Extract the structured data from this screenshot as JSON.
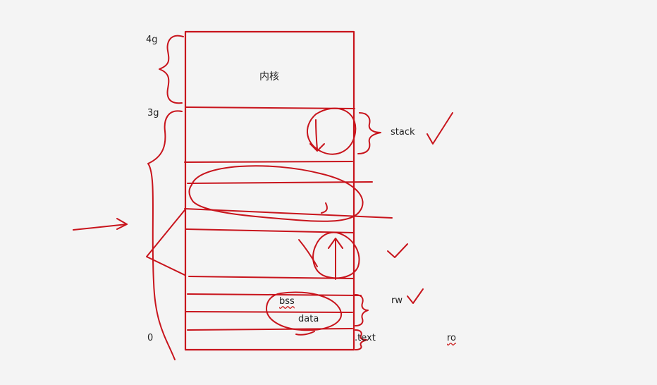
{
  "diagram": {
    "address_labels": {
      "top": "4g",
      "kernel_boundary": "3g",
      "bottom": "0"
    },
    "kernel_label": "内核",
    "segments": {
      "stack": "stack",
      "bss": "bss",
      "data": "data",
      "text": ".text"
    },
    "permissions": {
      "rw": "rw",
      "ro": "ro"
    }
  },
  "colors": {
    "ink": "#c8141c",
    "text": "#222222",
    "background": "#f4f4f4"
  }
}
